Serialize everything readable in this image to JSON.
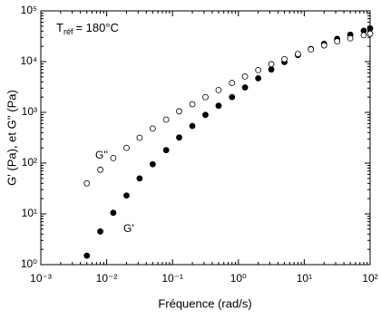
{
  "chart_data": {
    "type": "scatter",
    "x_label": "Fréquence (rad/s)",
    "y_label": "G' (Pa), et G'' (Pa)",
    "annotation": {
      "text": "T",
      "subscript": "réf",
      "rest": "= 180°C"
    },
    "log_x": true,
    "log_y": true,
    "xlim": [
      0.001,
      100
    ],
    "ylim": [
      1,
      100000
    ],
    "xticks": [
      {
        "value": 0.001,
        "label": "10⁻³"
      },
      {
        "value": 0.01,
        "label": "10⁻²"
      },
      {
        "value": 0.1,
        "label": "10⁻¹"
      },
      {
        "value": 1,
        "label": "10⁰"
      },
      {
        "value": 10,
        "label": "10¹"
      },
      {
        "value": 100,
        "label": "10²"
      }
    ],
    "yticks": [
      {
        "value": 1,
        "label": "10⁰"
      },
      {
        "value": 10,
        "label": "10¹"
      },
      {
        "value": 100,
        "label": "10²"
      },
      {
        "value": 1000,
        "label": "10³"
      },
      {
        "value": 10000,
        "label": "10⁴"
      },
      {
        "value": 100000,
        "label": "10⁵"
      }
    ],
    "series": [
      {
        "name": "G'",
        "color": "#000000",
        "filled": true,
        "x": [
          0.005,
          0.008,
          0.0126,
          0.02,
          0.0316,
          0.05,
          0.08,
          0.126,
          0.2,
          0.316,
          0.5,
          0.8,
          1.26,
          2,
          3.16,
          5,
          8,
          12.6,
          20,
          31.6,
          50,
          80,
          100
        ],
        "values": [
          1.5,
          4.5,
          10.5,
          23,
          50,
          95,
          180,
          320,
          540,
          890,
          1350,
          2000,
          3100,
          4700,
          7000,
          9800,
          13500,
          17800,
          22400,
          28000,
          34000,
          40700,
          45000
        ]
      },
      {
        "name": "G''",
        "color": "#000000",
        "filled": false,
        "x": [
          0.005,
          0.008,
          0.0126,
          0.02,
          0.0316,
          0.05,
          0.08,
          0.126,
          0.2,
          0.316,
          0.5,
          0.8,
          1.26,
          2,
          3.16,
          5,
          8,
          12.6,
          20,
          31.6,
          50,
          80,
          100
        ],
        "values": [
          40,
          74,
          126,
          200,
          316,
          480,
          720,
          1050,
          1450,
          2000,
          2750,
          3800,
          5100,
          6800,
          8900,
          11200,
          14100,
          17400,
          20900,
          25100,
          28800,
          33100,
          35500
        ]
      }
    ]
  }
}
